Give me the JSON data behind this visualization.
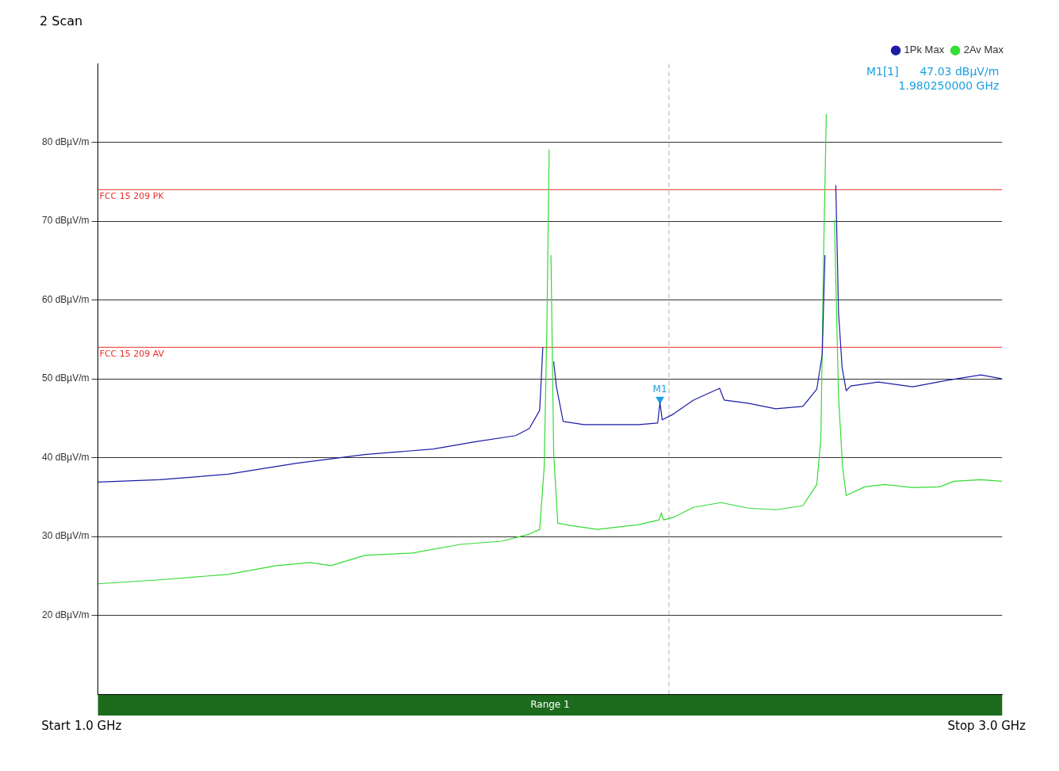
{
  "chart_data": {
    "type": "line",
    "title": "2 Scan",
    "xlim": [
      1,
      3
    ],
    "xticks": [
      {
        "value": 1,
        "label": "1.0 GHz"
      },
      {
        "value": 3,
        "label": "3.0 GHz"
      }
    ],
    "ylim": [
      10,
      90
    ],
    "yticks": [
      {
        "value": 20,
        "label": "20 dBµV/m"
      },
      {
        "value": 30,
        "label": "30 dBµV/m"
      },
      {
        "value": 40,
        "label": "40 dBµV/m"
      },
      {
        "value": 50,
        "label": "50 dBµV/m"
      },
      {
        "value": 60,
        "label": "60 dBµV/m"
      },
      {
        "value": 70,
        "label": "70 dBµV/m"
      },
      {
        "value": 80,
        "label": "80 dBµV/m"
      }
    ],
    "grid": "y",
    "legend": "top right",
    "marker": "none",
    "line_style": "solid",
    "series": [
      {
        "name": "1Pk Max",
        "color": "#1c1ca8",
        "x": [
          1.0,
          1.136,
          1.288,
          1.439,
          1.59,
          1.742,
          1.833,
          1.924,
          1.954,
          1.977,
          1.984,
          1.999,
          2.008,
          2.014,
          2.029,
          2.075,
          2.196,
          2.238,
          2.243,
          2.248,
          2.272,
          2.317,
          2.375,
          2.385,
          2.438,
          2.499,
          2.559,
          2.59,
          2.602,
          2.608,
          2.614,
          2.626,
          2.632,
          2.638,
          2.646,
          2.655,
          2.665,
          2.726,
          2.802,
          2.877,
          2.953,
          3.0
        ],
        "values": [
          36.9,
          37.2,
          37.9,
          39.3,
          40.4,
          41.1,
          42,
          42.8,
          43.7,
          46,
          54,
          null,
          52.2,
          49,
          44.6,
          44.2,
          44.2,
          44.4,
          47,
          44.8,
          45.5,
          47.3,
          48.8,
          47.3,
          46.9,
          46.2,
          46.5,
          48.7,
          53.1,
          65.7,
          null,
          null,
          74.6,
          58.5,
          51.4,
          48.5,
          49.1,
          49.6,
          49,
          49.8,
          50.5,
          50
        ]
      },
      {
        "name": "2Av Max",
        "color": "#33dd33",
        "x": [
          1.0,
          1.136,
          1.288,
          1.394,
          1.469,
          1.515,
          1.59,
          1.696,
          1.802,
          1.893,
          1.954,
          1.977,
          1.987,
          1.993,
          1.998,
          1.999,
          2.002,
          2.008,
          2.017,
          2.045,
          2.105,
          2.196,
          2.241,
          2.246,
          2.251,
          2.272,
          2.317,
          2.378,
          2.438,
          2.499,
          2.559,
          2.59,
          2.599,
          2.605,
          2.611,
          2.617,
          2.623,
          2.629,
          2.638,
          2.647,
          2.655,
          2.696,
          2.741,
          2.802,
          2.862,
          2.893,
          2.953,
          3.0
        ],
        "values": [
          24,
          24.5,
          25.2,
          26.3,
          26.7,
          26.3,
          27.6,
          27.9,
          29,
          29.4,
          30.3,
          30.9,
          38.8,
          56.7,
          79.1,
          null,
          65.7,
          40.6,
          31.7,
          31.4,
          30.9,
          31.5,
          32.1,
          33,
          32.1,
          32.4,
          33.7,
          34.3,
          33.6,
          33.4,
          33.9,
          36.6,
          42.4,
          65.7,
          83.6,
          null,
          null,
          70.2,
          47.8,
          38.8,
          35.2,
          36.3,
          36.6,
          36.2,
          36.3,
          37,
          37.2,
          37
        ]
      },
      {
        "type": "scatter",
        "color": "#1aa0e0",
        "marker": "triangle",
        "x": [
          2.243
        ],
        "values": [
          47.4
        ]
      }
    ],
    "ref_lines": [
      {
        "axis": "y",
        "value": 74,
        "label": "FCC 15 209 PK",
        "color": "#e8312a"
      },
      {
        "axis": "y",
        "value": 54,
        "label": "FCC 15 209 AV",
        "color": "#e8312a"
      },
      {
        "axis": "x",
        "value": 2.263,
        "color": "#b0b0b0",
        "line_style": "dashed"
      }
    ],
    "annotations": [
      "M1[1]      47.03 dBµV/m",
      "1.980250000 GHz",
      {
        "text": "M1",
        "x": 2.243,
        "y": 47
      },
      "Range 1",
      "Start",
      "Stop"
    ]
  }
}
